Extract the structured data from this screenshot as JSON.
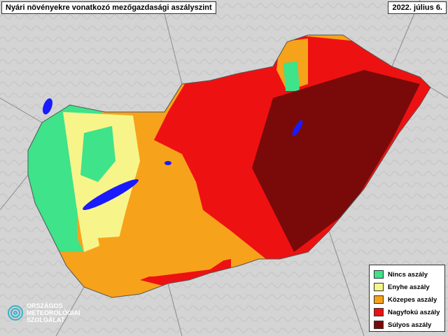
{
  "header": {
    "title": "Nyári növényekre vonatkozó mezőgazdasági aszályszint",
    "date": "2022. július 6."
  },
  "legend": {
    "items": [
      {
        "label": "Nincs aszály",
        "color": "#3ee38a"
      },
      {
        "label": "Enyhe aszály",
        "color": "#f7f58a"
      },
      {
        "label": "Közepes aszály",
        "color": "#f7a21b"
      },
      {
        "label": "Nagyfokú aszály",
        "color": "#ee1111"
      },
      {
        "label": "Súlyos aszály",
        "color": "#7a0a0a"
      }
    ]
  },
  "logo": {
    "lines": [
      "ORSZÁGOS",
      "METEOROLÓGIAI",
      "SZOLGÁLAT"
    ]
  }
}
